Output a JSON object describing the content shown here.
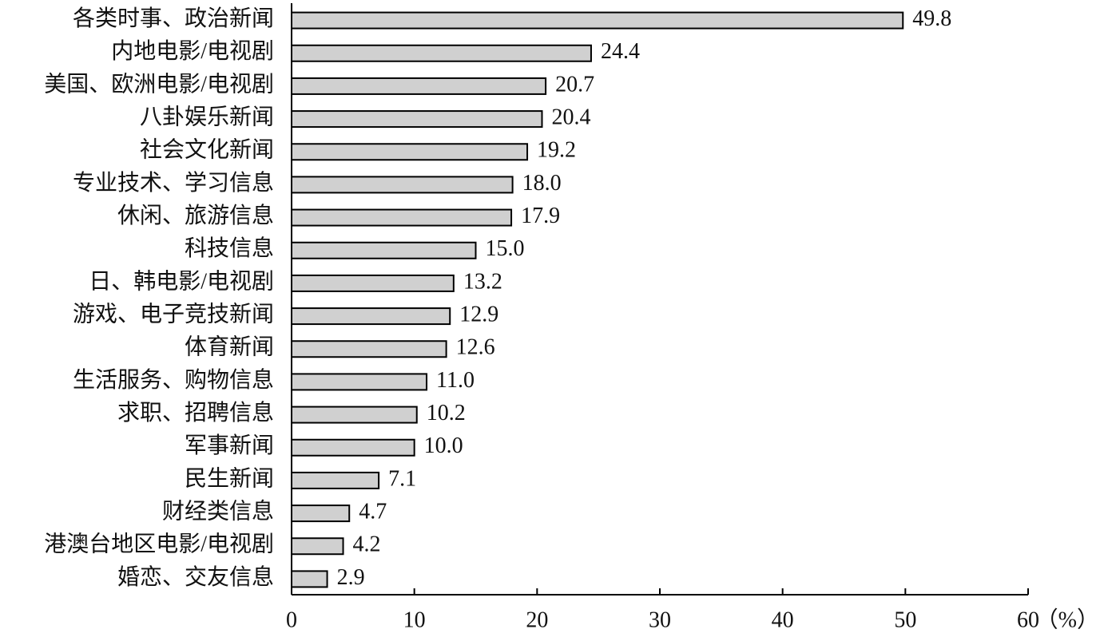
{
  "chart_data": {
    "type": "bar",
    "orientation": "horizontal",
    "categories": [
      "各类时事、政治新闻",
      "内地电影/电视剧",
      "美国、欧洲电影/电视剧",
      "八卦娱乐新闻",
      "社会文化新闻",
      "专业技术、学习信息",
      "休闲、旅游信息",
      "科技信息",
      "日、韩电影/电视剧",
      "游戏、电子竞技新闻",
      "体育新闻",
      "生活服务、购物信息",
      "求职、招聘信息",
      "军事新闻",
      "民生新闻",
      "财经类信息",
      "港澳台地区电影/电视剧",
      "婚恋、交友信息"
    ],
    "values": [
      49.8,
      24.4,
      20.7,
      20.4,
      19.2,
      18.0,
      17.9,
      15.0,
      13.2,
      12.9,
      12.6,
      11.0,
      10.2,
      10.0,
      7.1,
      4.7,
      4.2,
      2.9
    ],
    "value_labels": [
      "49.8",
      "24.4",
      "20.7",
      "20.4",
      "19.2",
      "18.0",
      "17.9",
      "15.0",
      "13.2",
      "12.9",
      "12.6",
      "11.0",
      "10.2",
      "10.0",
      "7.1",
      "4.7",
      "4.2",
      "2.9"
    ],
    "color": "#d0d0d0",
    "xlim": [
      0,
      60
    ],
    "xticks": [
      0,
      10,
      20,
      30,
      40,
      50,
      60
    ],
    "x_label": "（%）"
  }
}
